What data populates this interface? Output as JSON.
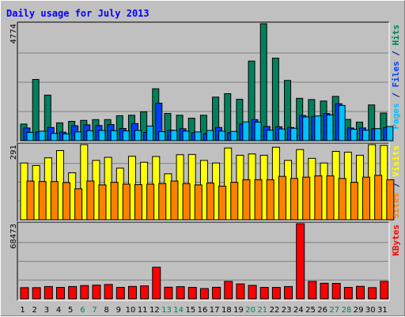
{
  "chart_data": {
    "type": "bar",
    "title": "Daily usage for July 2013",
    "categories": [
      "1",
      "2",
      "3",
      "4",
      "5",
      "6",
      "7",
      "8",
      "9",
      "10",
      "11",
      "12",
      "13",
      "14",
      "15",
      "16",
      "17",
      "18",
      "19",
      "20",
      "21",
      "22",
      "23",
      "24",
      "25",
      "26",
      "27",
      "28",
      "29",
      "30",
      "31"
    ],
    "weekend_days": [
      "6",
      "7",
      "13",
      "14",
      "20",
      "21",
      "27",
      "28"
    ],
    "panels": [
      {
        "id": "hits_files_pages",
        "max_label": "4774",
        "ymax": 4774,
        "axis_labels": [
          {
            "text": "Pages",
            "color": "#00c0ff"
          },
          {
            "text": " / ",
            "color": "#000080"
          },
          {
            "text": "Files",
            "color": "#0040ff"
          },
          {
            "text": " / ",
            "color": "#000080"
          },
          {
            "text": "Hits",
            "color": "#00805c"
          }
        ],
        "series": [
          {
            "name": "Hits",
            "color": "#00805c",
            "values": [
              680,
              2500,
              1860,
              730,
              790,
              830,
              860,
              860,
              1020,
              1040,
              1180,
              2120,
              1110,
              1040,
              920,
              1040,
              1780,
              1920,
              1690,
              3250,
              4774,
              3370,
              2460,
              1730,
              1680,
              1620,
              1810,
              870,
              760,
              1460,
              1130
            ]
          },
          {
            "name": "Files",
            "color": "#0040ff",
            "values": [
              520,
              360,
              540,
              350,
              610,
              650,
              620,
              660,
              500,
              700,
              340,
              1530,
              430,
              490,
              330,
              280,
              540,
              330,
              680,
              860,
              580,
              570,
              540,
              1030,
              990,
              1110,
              1510,
              520,
              520,
              490,
              540
            ]
          },
          {
            "name": "Pages",
            "color": "#00c0ff",
            "values": [
              340,
              390,
              300,
              280,
              360,
              410,
              420,
              410,
              400,
              420,
              600,
              370,
              420,
              390,
              360,
              420,
              390,
              380,
              770,
              760,
              430,
              480,
              510,
              970,
              1010,
              1050,
              1440,
              470,
              430,
              490,
              580
            ]
          }
        ]
      },
      {
        "id": "visits_sites",
        "max_label": "291",
        "ymax": 291,
        "axis_labels": [
          {
            "text": "Sites",
            "color": "#ff8000"
          },
          {
            "text": " / ",
            "color": "#000080"
          },
          {
            "text": "Visits",
            "color": "#ffff00"
          }
        ],
        "series": [
          {
            "name": "Visits",
            "color": "#ffff00",
            "values": [
              220,
              210,
              240,
              268,
              182,
              291,
              230,
              242,
              200,
              246,
              223,
              245,
              178,
              252,
              253,
              230,
              220,
              278,
              250,
              255,
              250,
              281,
              230,
              272,
              238,
              220,
              265,
              262,
              250,
              291,
              288
            ]
          },
          {
            "name": "Sites",
            "color": "#ff8000",
            "values": [
              150,
              148,
              148,
              144,
              120,
              150,
              135,
              145,
              138,
              136,
              138,
              140,
              150,
              140,
              135,
              142,
              130,
              145,
              155,
              155,
              155,
              168,
              160,
              165,
              170,
              170,
              160,
              145,
              165,
              172,
              155
            ]
          }
        ]
      },
      {
        "id": "kbytes",
        "max_label": "68473",
        "ymax": 68473,
        "axis_labels": [
          {
            "text": "KBytes",
            "color": "#ff0000"
          }
        ],
        "series": [
          {
            "name": "KBytes",
            "color": "#ff0000",
            "values": [
              10200,
              10200,
              11200,
              10400,
              11200,
              12100,
              12500,
              13100,
              10400,
              11300,
              11800,
              28800,
              10600,
              11100,
              10400,
              9400,
              10500,
              15900,
              13600,
              12300,
              10400,
              10400,
              11200,
              68473,
              15900,
              14200,
              14100,
              10400,
              11400,
              10200,
              15900
            ]
          }
        ]
      }
    ],
    "colors": {
      "title": "#0000ff",
      "weekday_label": "#000000",
      "weekend_label": "#00805c",
      "panel_bg": "#c0c0c0",
      "grid": "#808080"
    }
  }
}
